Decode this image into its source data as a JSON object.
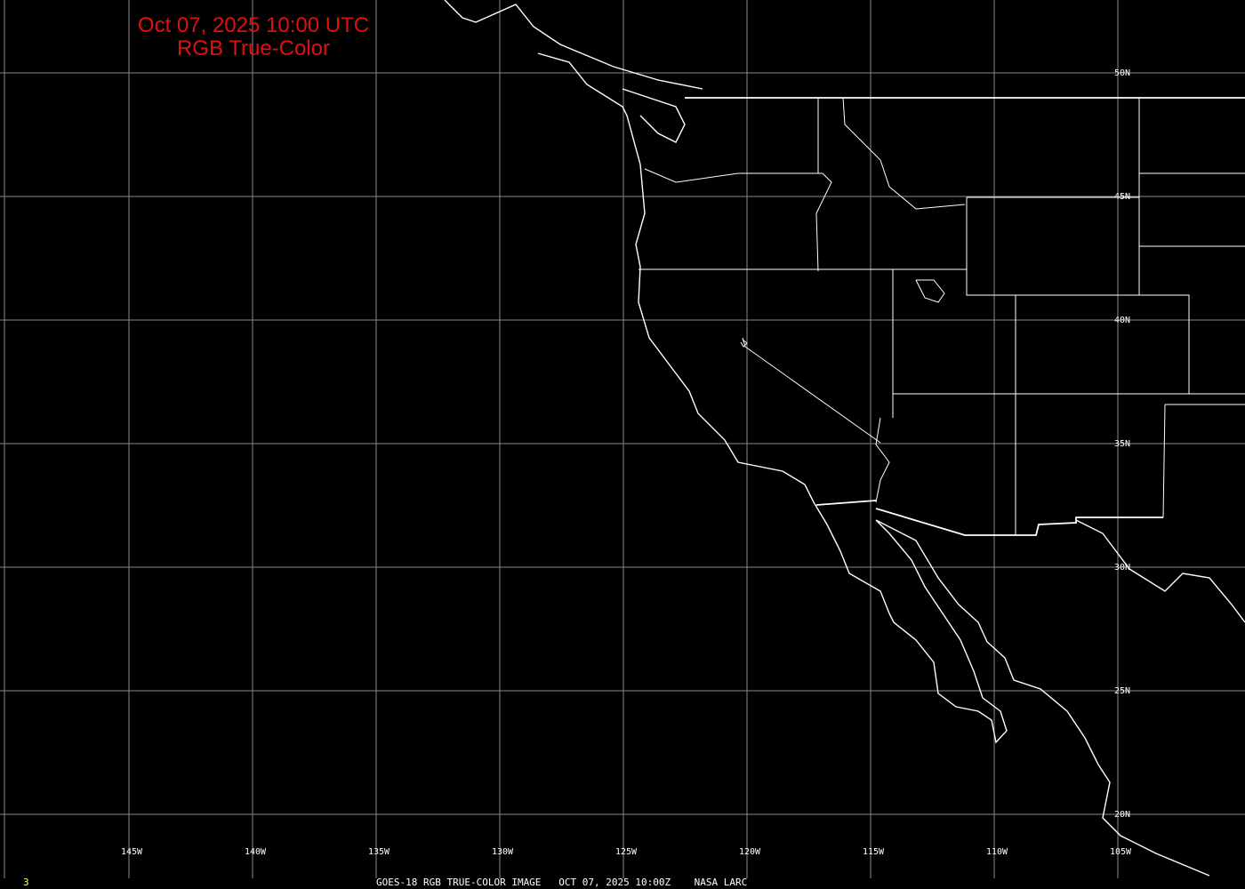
{
  "title": {
    "line1": "Oct 07, 2025 10:00 UTC",
    "line2": "RGB True-Color"
  },
  "footer": {
    "frame": "3",
    "caption": "GOES-18 RGB TRUE-COLOR IMAGE   OCT 07, 2025 10:00Z    NASA LARC"
  },
  "grid": {
    "longitudes": [
      "145W",
      "140W",
      "135W",
      "130W",
      "125W",
      "120W",
      "115W",
      "110W",
      "105W"
    ],
    "latitudes": [
      "50N",
      "45N",
      "40N",
      "35N",
      "30N",
      "25N",
      "20N"
    ]
  },
  "colors": {
    "background": "#000000",
    "title": "#e01010",
    "grid": "#8a8a8a",
    "borders": "#ffffff",
    "frame_label": "#ffff66"
  }
}
